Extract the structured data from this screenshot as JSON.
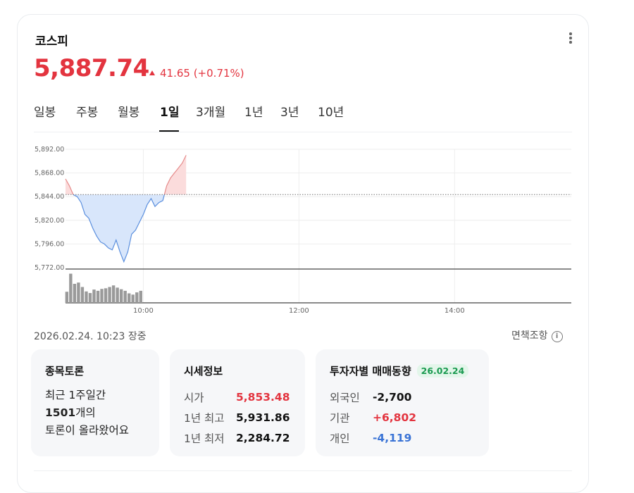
{
  "stock": {
    "name": "코스피",
    "price": "5,887.74",
    "change": "41.65 (+0.71%)",
    "up_color": "#e3343f",
    "down_color": "#3b74d6"
  },
  "tabs": [
    "일봉",
    "주봉",
    "월봉",
    "1일",
    "3개월",
    "1년",
    "3년",
    "10년"
  ],
  "active_tab": "1일",
  "chart_data": {
    "type": "area",
    "y_ticks": [
      "5,892.00",
      "5,868.00",
      "5,844.00",
      "5,820.00",
      "5,796.00",
      "5,772.00"
    ],
    "x_ticks": [
      "10:00",
      "12:00",
      "14:00"
    ],
    "ylim": [
      5772,
      5892
    ],
    "prev_close": 5846.09,
    "session": [
      "09:00",
      "15:30"
    ],
    "price_series": [
      {
        "t": "09:00",
        "v": 5862
      },
      {
        "t": "09:03",
        "v": 5855
      },
      {
        "t": "09:06",
        "v": 5846
      },
      {
        "t": "09:09",
        "v": 5844
      },
      {
        "t": "09:12",
        "v": 5838
      },
      {
        "t": "09:15",
        "v": 5826
      },
      {
        "t": "09:18",
        "v": 5822
      },
      {
        "t": "09:21",
        "v": 5812
      },
      {
        "t": "09:24",
        "v": 5804
      },
      {
        "t": "09:27",
        "v": 5798
      },
      {
        "t": "09:30",
        "v": 5796
      },
      {
        "t": "09:33",
        "v": 5792
      },
      {
        "t": "09:36",
        "v": 5790
      },
      {
        "t": "09:39",
        "v": 5800
      },
      {
        "t": "09:42",
        "v": 5788
      },
      {
        "t": "09:45",
        "v": 5778
      },
      {
        "t": "09:48",
        "v": 5788
      },
      {
        "t": "09:51",
        "v": 5806
      },
      {
        "t": "09:54",
        "v": 5810
      },
      {
        "t": "09:57",
        "v": 5818
      },
      {
        "t": "10:00",
        "v": 5826
      },
      {
        "t": "10:03",
        "v": 5836
      },
      {
        "t": "10:06",
        "v": 5842
      },
      {
        "t": "10:09",
        "v": 5834
      },
      {
        "t": "10:12",
        "v": 5838
      },
      {
        "t": "10:15",
        "v": 5840
      },
      {
        "t": "10:18",
        "v": 5855
      },
      {
        "t": "10:21",
        "v": 5863
      },
      {
        "t": "10:24",
        "v": 5868
      },
      {
        "t": "10:27",
        "v": 5873
      },
      {
        "t": "10:30",
        "v": 5878
      },
      {
        "t": "10:33",
        "v": 5886
      }
    ],
    "volume_series": [
      {
        "t": "09:01",
        "v": 0.35
      },
      {
        "t": "09:04",
        "v": 0.92
      },
      {
        "t": "09:07",
        "v": 0.6
      },
      {
        "t": "09:10",
        "v": 0.64
      },
      {
        "t": "09:13",
        "v": 0.5
      },
      {
        "t": "09:16",
        "v": 0.36
      },
      {
        "t": "09:19",
        "v": 0.31
      },
      {
        "t": "09:22",
        "v": 0.42
      },
      {
        "t": "09:25",
        "v": 0.38
      },
      {
        "t": "09:28",
        "v": 0.44
      },
      {
        "t": "09:31",
        "v": 0.46
      },
      {
        "t": "09:34",
        "v": 0.5
      },
      {
        "t": "09:37",
        "v": 0.55
      },
      {
        "t": "09:40",
        "v": 0.48
      },
      {
        "t": "09:43",
        "v": 0.43
      },
      {
        "t": "09:46",
        "v": 0.38
      },
      {
        "t": "09:49",
        "v": 0.3
      },
      {
        "t": "09:52",
        "v": 0.26
      },
      {
        "t": "09:55",
        "v": 0.33
      },
      {
        "t": "09:58",
        "v": 0.38
      }
    ]
  },
  "timestamp": "2026.02.24. 10:23 장중",
  "disclaimer": "면책조항",
  "info_icon": "i",
  "discussion": {
    "title": "종목토론",
    "line1": "최근 1주일간",
    "count": "1501",
    "count_suffix": "개의",
    "line3": "토론이 올라왔어요"
  },
  "market_info": {
    "title": "시세정보",
    "rows": [
      {
        "label": "시가",
        "value": "5,853.48"
      },
      {
        "label": "1년 최고",
        "value": "5,931.86"
      },
      {
        "label": "1년 최저",
        "value": "2,284.72"
      }
    ]
  },
  "investors": {
    "title": "투자자별 매매동향",
    "date_badge": "26.02.24",
    "rows": [
      {
        "label": "외국인",
        "value": "-2,700"
      },
      {
        "label": "기관",
        "value": "+6,802"
      },
      {
        "label": "개인",
        "value": "-4,119"
      }
    ]
  }
}
